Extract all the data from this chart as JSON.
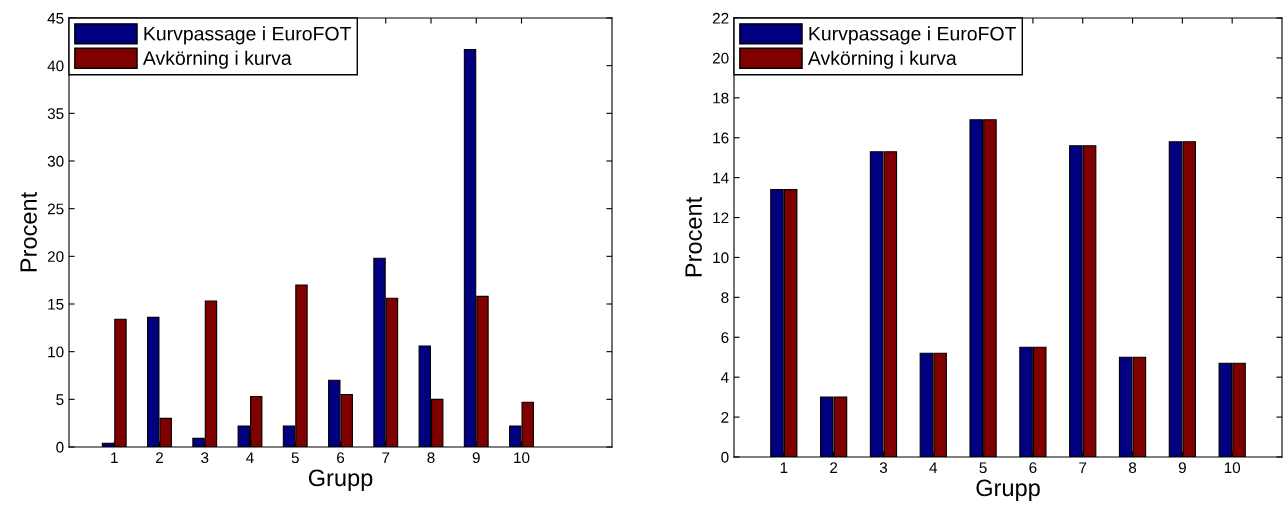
{
  "chart_data": [
    {
      "type": "bar",
      "xlabel": "Grupp",
      "ylabel": "Procent",
      "x": [
        1,
        2,
        3,
        4,
        5,
        6,
        7,
        8,
        9,
        10
      ],
      "xlim": [
        0,
        12
      ],
      "xticks": [
        1,
        2,
        3,
        4,
        5,
        6,
        7,
        8,
        9,
        10
      ],
      "ylim": [
        0,
        45
      ],
      "yticks": [
        0,
        5,
        10,
        15,
        20,
        25,
        30,
        35,
        40,
        45
      ],
      "grid": false,
      "legend": "top left",
      "series": [
        {
          "name": "Kurvpassage i EuroFOT",
          "color": "#000080",
          "values": [
            0.4,
            13.6,
            0.9,
            2.2,
            2.2,
            7.0,
            19.8,
            10.6,
            41.7,
            2.2
          ]
        },
        {
          "name": "Avkörning i kurva",
          "color": "#800000",
          "values": [
            13.4,
            3.0,
            15.3,
            5.3,
            17.0,
            5.5,
            15.6,
            5.0,
            15.8,
            4.7
          ]
        }
      ]
    },
    {
      "type": "bar",
      "xlabel": "Grupp",
      "ylabel": "Procent",
      "x": [
        1,
        2,
        3,
        4,
        5,
        6,
        7,
        8,
        9,
        10
      ],
      "xlim": [
        0,
        11
      ],
      "xticks": [
        1,
        2,
        3,
        4,
        5,
        6,
        7,
        8,
        9,
        10
      ],
      "ylim": [
        0,
        22
      ],
      "yticks": [
        0,
        2,
        4,
        6,
        8,
        10,
        12,
        14,
        16,
        18,
        20,
        22
      ],
      "grid": false,
      "legend": "top left",
      "series": [
        {
          "name": "Kurvpassage i EuroFOT",
          "color": "#000080",
          "values": [
            13.4,
            3.0,
            15.3,
            5.2,
            16.9,
            5.5,
            15.6,
            5.0,
            15.8,
            4.7
          ]
        },
        {
          "name": "Avkörning i kurva",
          "color": "#800000",
          "values": [
            13.4,
            3.0,
            15.3,
            5.2,
            16.9,
            5.5,
            15.6,
            5.0,
            15.8,
            4.7
          ]
        }
      ]
    }
  ]
}
